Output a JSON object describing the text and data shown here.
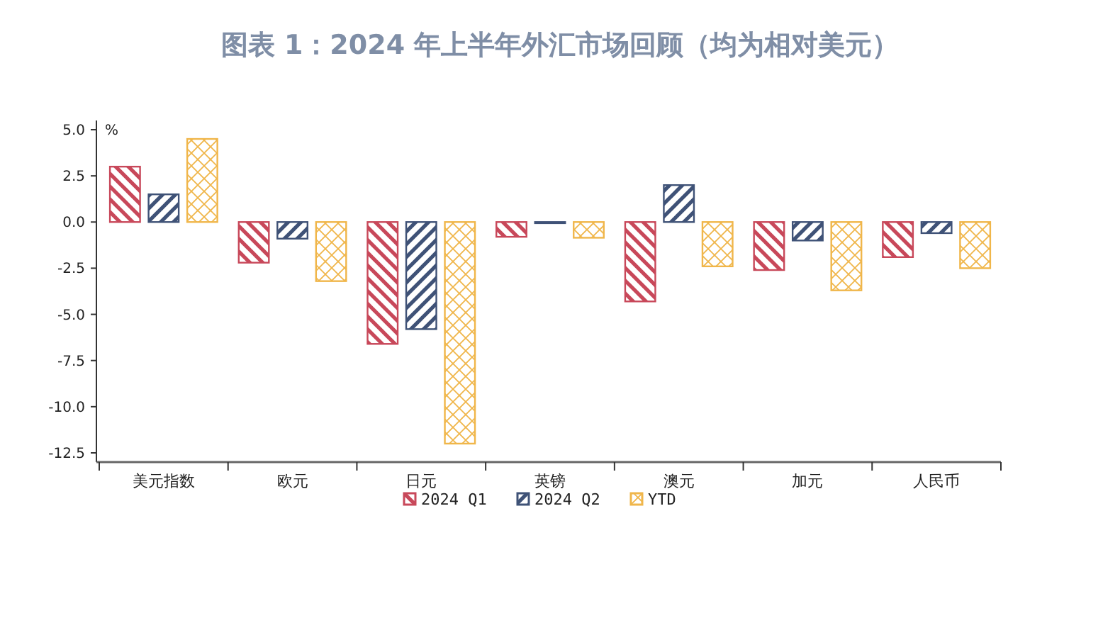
{
  "chart_data": {
    "type": "bar",
    "title": "图表 1：2024 年上半年外汇市场回顾（均为相对美元）",
    "ylabel": "%",
    "categories": [
      "美元指数",
      "欧元",
      "日元",
      "英镑",
      "澳元",
      "加元",
      "人民币"
    ],
    "series": [
      {
        "name": "2024 Q1",
        "color": "#c8485a",
        "values": [
          3.0,
          -2.2,
          -6.6,
          -0.8,
          -4.3,
          -2.6,
          -1.9
        ]
      },
      {
        "name": "2024 Q2",
        "color": "#3f5277",
        "values": [
          1.5,
          -0.9,
          -5.8,
          -0.05,
          2.0,
          -1.0,
          -0.6
        ]
      },
      {
        "name": "YTD",
        "color": "#f0b64a",
        "values": [
          4.5,
          -3.2,
          -12.0,
          -0.85,
          -2.4,
          -3.7,
          -2.5
        ]
      }
    ],
    "ylim": [
      -13,
      5.5
    ],
    "yticks": [
      {
        "value": 5,
        "label": "5.0"
      },
      2.5,
      {
        "value": 0,
        "label": "0.0"
      },
      -2.5,
      {
        "value": -5,
        "label": "-5.0"
      },
      -7.5,
      {
        "value": -10,
        "label": "-10.0"
      },
      -12.5
    ],
    "grid": false,
    "legend": "bottom"
  }
}
